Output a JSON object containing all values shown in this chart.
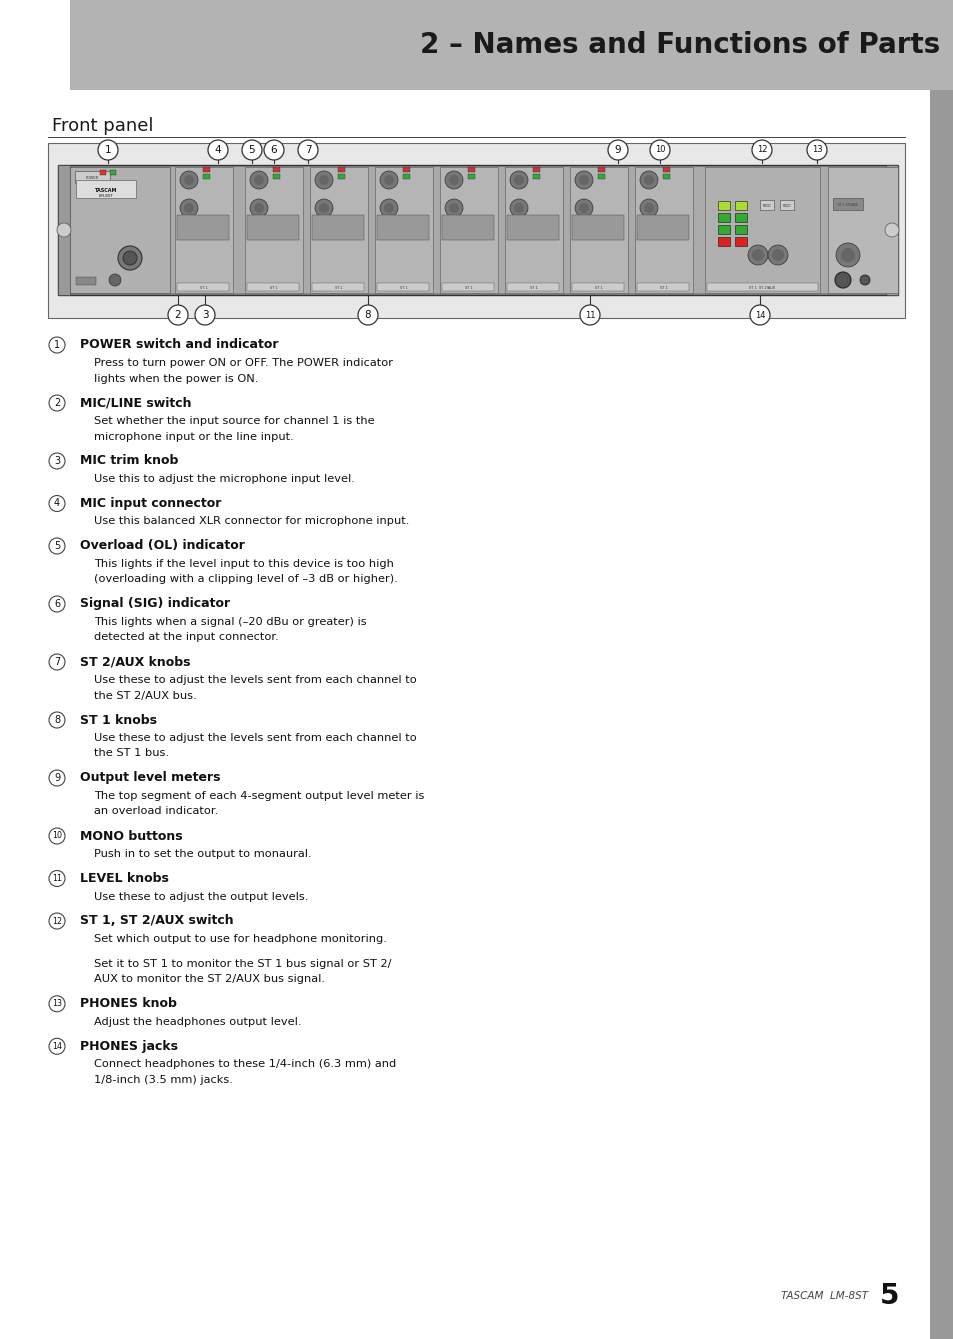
{
  "title": "2 – Names and Functions of Parts",
  "section_title": "Front panel",
  "header_bg": "#b3b3b3",
  "page_bg": "#ffffff",
  "right_bar_color": "#999999",
  "title_color": "#1a1a1a",
  "section_color": "#1a1a1a",
  "body_color": "#111111",
  "footer_text": "TASCAM  LM-8ST",
  "footer_page": "5",
  "items": [
    {
      "num": "1",
      "heading": "POWER switch and indicator",
      "text": "Press to turn power ON or OFF. The POWER indicator\nlights when the power is ON."
    },
    {
      "num": "2",
      "heading": "MIC/LINE switch",
      "text": "Set whether the input source for channel 1 is the\nmicrophone input or the line input."
    },
    {
      "num": "3",
      "heading": "MIC trim knob",
      "text": "Use this to adjust the microphone input level."
    },
    {
      "num": "4",
      "heading": "MIC input connector",
      "text": "Use this balanced XLR connector for microphone input."
    },
    {
      "num": "5",
      "heading": "Overload (OL) indicator",
      "text": "This lights if the level input to this device is too high\n(overloading with a clipping level of –3 dB or higher)."
    },
    {
      "num": "6",
      "heading": "Signal (SIG) indicator",
      "text": "This lights when a signal (–20 dBu or greater) is\ndetected at the input connector."
    },
    {
      "num": "7",
      "heading": "ST 2/AUX knobs",
      "text": "Use these to adjust the levels sent from each channel to\nthe ST 2/AUX bus."
    },
    {
      "num": "8",
      "heading": "ST 1 knobs",
      "text": "Use these to adjust the levels sent from each channel to\nthe ST 1 bus."
    },
    {
      "num": "9",
      "heading": "Output level meters",
      "text": "The top segment of each 4-segment output level meter is\nan overload indicator."
    },
    {
      "num": "10",
      "heading": "MONO buttons",
      "text": "Push in to set the output to monaural."
    },
    {
      "num": "11",
      "heading": "LEVEL knobs",
      "text": "Use these to adjust the output levels."
    },
    {
      "num": "12",
      "heading": "ST 1, ST 2/AUX switch",
      "text": "Set which output to use for headphone monitoring.\n\nSet it to ST 1 to monitor the ST 1 bus signal or ST 2/\nAUX to monitor the ST 2/AUX bus signal."
    },
    {
      "num": "13",
      "heading": "PHONES knob",
      "text": "Adjust the headphones output level."
    },
    {
      "num": "14",
      "heading": "PHONES jacks",
      "text": "Connect headphones to these 1/4-inch (6.3 mm) and\n1/8-inch (3.5 mm) jacks."
    }
  ]
}
